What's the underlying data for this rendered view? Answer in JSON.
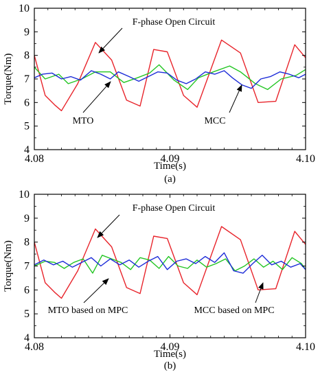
{
  "chart_data": [
    {
      "type": "line",
      "panel_label": "(a)",
      "xlabel": "Time(s)",
      "ylabel": "Torque(Nm)",
      "xlim": [
        4.08,
        4.1
      ],
      "ylim": [
        4,
        10
      ],
      "xticks": [
        "4.08",
        "4.09",
        "4.10"
      ],
      "yticks": [
        "4",
        "5",
        "6",
        "7",
        "8",
        "9",
        "10"
      ],
      "grid": false,
      "annotations": [
        {
          "text": "F-phase Open Circuit",
          "x": 4.0834,
          "y": 8.55
        },
        {
          "text": "MTO",
          "x": 4.0852,
          "y": 7.05
        },
        {
          "text": "MCC",
          "x": 4.0942,
          "y": 7.05
        }
      ],
      "series": [
        {
          "color": "#e8232a",
          "x": [
            4.08,
            4.0808,
            4.0815,
            4.082,
            4.0832,
            4.0845,
            4.0857,
            4.0868,
            4.0878,
            4.0888,
            4.0898,
            4.091,
            4.092,
            4.0938,
            4.0952,
            4.0965,
            4.0978,
            4.0992,
            4.1
          ],
          "values": [
            8.0,
            6.3,
            5.9,
            5.65,
            6.8,
            8.55,
            7.8,
            6.1,
            5.85,
            8.25,
            8.15,
            6.3,
            5.8,
            8.65,
            8.1,
            6.0,
            6.05,
            8.45,
            7.9
          ]
        },
        {
          "color": "#22c522",
          "x": [
            4.08,
            4.0808,
            4.0818,
            4.0825,
            4.0835,
            4.0845,
            4.0856,
            4.0866,
            4.0876,
            4.0885,
            4.0892,
            4.0903,
            4.0913,
            4.0921,
            4.0932,
            4.0944,
            4.0952,
            4.0963,
            4.0972,
            4.0982,
            4.0993,
            4.1
          ],
          "values": [
            7.5,
            7.0,
            7.2,
            6.8,
            7.0,
            7.3,
            7.3,
            6.85,
            7.05,
            7.25,
            7.6,
            6.95,
            6.55,
            7.05,
            7.3,
            7.55,
            7.3,
            6.8,
            6.55,
            7.0,
            7.15,
            7.4
          ]
        },
        {
          "color": "#1c2bd8",
          "x": [
            4.08,
            4.0806,
            4.0813,
            4.082,
            4.0827,
            4.0834,
            4.0842,
            4.0849,
            4.0856,
            4.0862,
            4.087,
            4.0877,
            4.0884,
            4.0891,
            4.0898,
            4.0905,
            4.0912,
            4.0919,
            4.0926,
            4.0933,
            4.094,
            4.0946,
            4.0953,
            4.096,
            4.0967,
            4.0974,
            4.0981,
            4.0988,
            4.0995,
            4.1
          ],
          "values": [
            7.05,
            7.2,
            7.25,
            7.0,
            7.1,
            6.95,
            7.35,
            7.2,
            7.0,
            7.3,
            7.1,
            6.9,
            7.1,
            7.3,
            7.25,
            6.95,
            6.8,
            7.0,
            7.3,
            7.2,
            7.35,
            7.05,
            6.75,
            6.6,
            7.0,
            7.1,
            7.3,
            7.2,
            7.05,
            7.2
          ]
        }
      ]
    },
    {
      "type": "line",
      "panel_label": "(b)",
      "xlabel": "Time(s)",
      "ylabel": "Torque(Nm)",
      "xlim": [
        4.08,
        4.1
      ],
      "ylim": [
        4,
        10
      ],
      "xticks": [
        "4.08",
        "4.09",
        "4.10"
      ],
      "yticks": [
        "4",
        "5",
        "6",
        "7",
        "8",
        "9",
        "10"
      ],
      "grid": false,
      "annotations": [
        {
          "text": "F-phase Open Circuit",
          "x": 4.0834,
          "y": 8.55
        },
        {
          "text": "MTO based on MPC",
          "x": 4.0838,
          "y": 6.9
        },
        {
          "text": "MCC based on MPC",
          "x": 4.0952,
          "y": 6.75
        }
      ],
      "series": [
        {
          "color": "#e8232a",
          "x": [
            4.08,
            4.0808,
            4.0815,
            4.082,
            4.0832,
            4.0845,
            4.0857,
            4.0868,
            4.0878,
            4.0888,
            4.0898,
            4.091,
            4.092,
            4.0938,
            4.0952,
            4.0965,
            4.0978,
            4.0992,
            4.1
          ],
          "values": [
            8.0,
            6.3,
            5.9,
            5.65,
            6.8,
            8.55,
            7.8,
            6.1,
            5.85,
            8.25,
            8.15,
            6.3,
            5.8,
            8.65,
            8.1,
            6.0,
            6.05,
            8.45,
            7.9
          ]
        },
        {
          "color": "#22c522",
          "x": [
            4.08,
            4.0808,
            4.0815,
            4.0822,
            4.0829,
            4.0836,
            4.0843,
            4.085,
            4.0857,
            4.0864,
            4.0871,
            4.0878,
            4.0885,
            4.0892,
            4.0899,
            4.0906,
            4.0913,
            4.092,
            4.0927,
            4.0934,
            4.0941,
            4.0948,
            4.0955,
            4.0962,
            4.0969,
            4.0976,
            4.0983,
            4.099,
            4.0997,
            4.1
          ],
          "values": [
            7.0,
            7.2,
            7.15,
            6.9,
            7.15,
            7.3,
            6.7,
            7.45,
            7.3,
            7.15,
            6.85,
            7.35,
            7.25,
            6.9,
            7.4,
            7.0,
            6.9,
            7.25,
            6.95,
            7.1,
            7.3,
            6.8,
            7.0,
            7.3,
            6.95,
            7.2,
            6.85,
            7.35,
            7.1,
            6.85
          ]
        },
        {
          "color": "#1c2bd8",
          "x": [
            4.08,
            4.0807,
            4.0814,
            4.0821,
            4.0828,
            4.0835,
            4.0842,
            4.0849,
            4.0856,
            4.0863,
            4.087,
            4.0877,
            4.0884,
            4.0891,
            4.0898,
            4.0905,
            4.0912,
            4.0919,
            4.0926,
            4.0933,
            4.094,
            4.0947,
            4.0954,
            4.0961,
            4.0968,
            4.0975,
            4.0982,
            4.0989,
            4.0996,
            4.1
          ],
          "values": [
            7.05,
            7.25,
            7.05,
            7.2,
            6.95,
            7.15,
            7.35,
            7.0,
            7.3,
            7.05,
            7.25,
            6.95,
            7.2,
            7.4,
            6.85,
            7.2,
            7.3,
            7.1,
            7.4,
            7.15,
            7.55,
            6.8,
            6.7,
            7.1,
            7.45,
            7.05,
            7.2,
            6.95,
            7.1,
            6.85
          ]
        }
      ]
    }
  ]
}
